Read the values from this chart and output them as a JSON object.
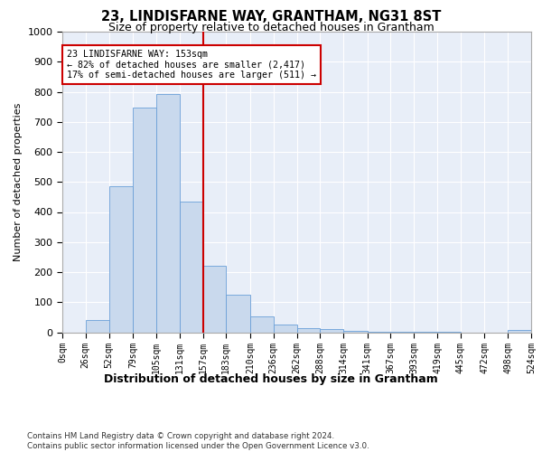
{
  "title": "23, LINDISFARNE WAY, GRANTHAM, NG31 8ST",
  "subtitle": "Size of property relative to detached houses in Grantham",
  "xlabel": "Distribution of detached houses by size in Grantham",
  "ylabel": "Number of detached properties",
  "bar_color": "#c9d9ed",
  "bar_edge_color": "#6a9fd8",
  "background_color": "#e8eef8",
  "grid_color": "#ffffff",
  "bin_edges": [
    0,
    26,
    52,
    79,
    105,
    131,
    157,
    183,
    210,
    236,
    262,
    288,
    314,
    341,
    367,
    393,
    419,
    445,
    472,
    498,
    524
  ],
  "bin_labels": [
    "0sqm",
    "26sqm",
    "52sqm",
    "79sqm",
    "105sqm",
    "131sqm",
    "157sqm",
    "183sqm",
    "210sqm",
    "236sqm",
    "262sqm",
    "288sqm",
    "314sqm",
    "341sqm",
    "367sqm",
    "393sqm",
    "419sqm",
    "445sqm",
    "472sqm",
    "498sqm",
    "524sqm"
  ],
  "bar_heights": [
    0,
    40,
    487,
    748,
    792,
    435,
    222,
    125,
    52,
    25,
    15,
    10,
    5,
    3,
    2,
    1,
    1,
    0,
    0,
    8
  ],
  "vline_x": 157,
  "annotation_text": "23 LINDISFARNE WAY: 153sqm\n← 82% of detached houses are smaller (2,417)\n17% of semi-detached houses are larger (511) →",
  "annotation_box_color": "#ffffff",
  "annotation_box_edge": "#cc0000",
  "vline_color": "#cc0000",
  "ylim": [
    0,
    1000
  ],
  "yticks": [
    0,
    100,
    200,
    300,
    400,
    500,
    600,
    700,
    800,
    900,
    1000
  ],
  "footer_text": "Contains HM Land Registry data © Crown copyright and database right 2024.\nContains public sector information licensed under the Open Government Licence v3.0."
}
